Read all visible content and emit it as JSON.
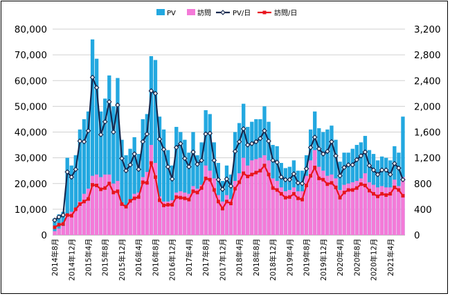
{
  "chart_data": {
    "type": "bar+line",
    "legend_position": "top",
    "grid": true,
    "colors": {
      "pv_bar": "#23a8e0",
      "visit_bar": "#f47ad8",
      "pv_day_line": "#17294f",
      "visit_day_line": "#e8141e"
    },
    "legend": [
      "PV",
      "訪問",
      "PV/日",
      "訪問/日"
    ],
    "y_left": {
      "min": 0,
      "max": 80000,
      "step": 10000,
      "tick_labels": [
        "0",
        "10,000",
        "20,000",
        "30,000",
        "40,000",
        "50,000",
        "60,000",
        "70,000",
        "80,000"
      ]
    },
    "y_right": {
      "min": 0,
      "max": 3200,
      "step": 400,
      "tick_labels": [
        "0",
        "400",
        "800",
        "1,200",
        "1,600",
        "2,000",
        "2,400",
        "2,800",
        "3,200"
      ]
    },
    "x_tick_labels": [
      "2014年8月",
      "2014年12月",
      "2015年4月",
      "2015年8月",
      "2015年12月",
      "2016年4月",
      "2016年8月",
      "2016年12月",
      "2017年4月",
      "2017年8月",
      "2017年12月",
      "2018年4月",
      "2018年8月",
      "2018年12月",
      "2019年4月",
      "2019年8月",
      "2019年12月",
      "2020年4月",
      "2020年8月",
      "2020年12月",
      "2021年4月"
    ],
    "series": [
      {
        "name": "PV",
        "axis": "left",
        "type": "bar",
        "values": [
          6500,
          8000,
          9000,
          30000,
          27000,
          31000,
          41000,
          45000,
          48000,
          76000,
          68500,
          48000,
          53000,
          62000,
          50000,
          61000,
          37000,
          31000,
          33500,
          38000,
          31500,
          45000,
          47000,
          69500,
          68000,
          46000,
          41000,
          33000,
          27000,
          42000,
          40000,
          37000,
          32000,
          40000,
          31000,
          36000,
          48500,
          47000,
          36000,
          28000,
          21000,
          27000,
          23500,
          40000,
          43500,
          51000,
          42000,
          44000,
          45000,
          45000,
          50000,
          44000,
          35000,
          34500,
          28000,
          26000,
          26500,
          29000,
          25000,
          25000,
          31000,
          41000,
          48000,
          41500,
          40000,
          41000,
          42500,
          37000,
          28500,
          32000,
          32000,
          33500,
          35000,
          36000,
          38500,
          33000,
          31500,
          29000,
          30500,
          30000,
          29000,
          34500,
          32000,
          46000
        ]
      },
      {
        "name": "訪問",
        "axis": "left",
        "type": "bar",
        "values": [
          1500,
          2500,
          3500,
          8000,
          9000,
          10500,
          13000,
          16000,
          18000,
          23000,
          23500,
          22500,
          23500,
          23500,
          20000,
          21000,
          12500,
          11500,
          13500,
          16000,
          16500,
          22500,
          24500,
          35000,
          28000,
          15000,
          13000,
          13000,
          13500,
          16500,
          17000,
          16500,
          16000,
          19000,
          18000,
          19500,
          27000,
          25000,
          22000,
          15500,
          13000,
          15500,
          14000,
          21000,
          24000,
          30000,
          27000,
          29000,
          29500,
          30000,
          31000,
          29000,
          22000,
          21000,
          18500,
          17000,
          17500,
          18500,
          17000,
          17000,
          23000,
          29000,
          33000,
          26500,
          25000,
          23000,
          23500,
          22000,
          17500,
          19500,
          20000,
          20500,
          21000,
          22000,
          24000,
          20500,
          19500,
          18500,
          19000,
          18500,
          18500,
          21500,
          19000,
          22500
        ]
      },
      {
        "name": "PV/日",
        "axis": "right",
        "type": "line",
        "values": [
          230,
          280,
          310,
          980,
          900,
          1020,
          1460,
          1450,
          1620,
          2450,
          2290,
          1560,
          1760,
          2070,
          1600,
          2020,
          1190,
          1000,
          1090,
          1260,
          1020,
          1450,
          1570,
          2240,
          2200,
          1490,
          1330,
          1060,
          870,
          1360,
          1420,
          1190,
          1060,
          1290,
          1100,
          1160,
          1570,
          1580,
          1160,
          860,
          710,
          870,
          760,
          1300,
          1450,
          1650,
          1400,
          1420,
          1450,
          1500,
          1620,
          1460,
          1160,
          1130,
          900,
          860,
          860,
          950,
          810,
          800,
          1030,
          1360,
          1520,
          1340,
          1260,
          1300,
          1450,
          1230,
          920,
          1050,
          1090,
          1090,
          1170,
          1230,
          1290,
          1080,
          1010,
          940,
          1010,
          1010,
          940,
          1110,
          1040,
          860
        ]
      },
      {
        "name": "訪問/日",
        "axis": "right",
        "type": "line",
        "values": [
          120,
          160,
          170,
          310,
          300,
          400,
          480,
          520,
          560,
          780,
          770,
          710,
          730,
          800,
          660,
          680,
          480,
          440,
          530,
          570,
          590,
          820,
          810,
          1120,
          900,
          540,
          460,
          470,
          470,
          590,
          580,
          570,
          550,
          680,
          660,
          730,
          880,
          860,
          700,
          520,
          410,
          520,
          490,
          720,
          820,
          960,
          910,
          940,
          970,
          1000,
          1080,
          940,
          730,
          700,
          640,
          580,
          590,
          640,
          570,
          550,
          770,
          920,
          1050,
          880,
          860,
          790,
          810,
          740,
          580,
          660,
          700,
          700,
          730,
          790,
          770,
          690,
          640,
          600,
          640,
          620,
          640,
          740,
          700,
          610
        ]
      }
    ]
  }
}
